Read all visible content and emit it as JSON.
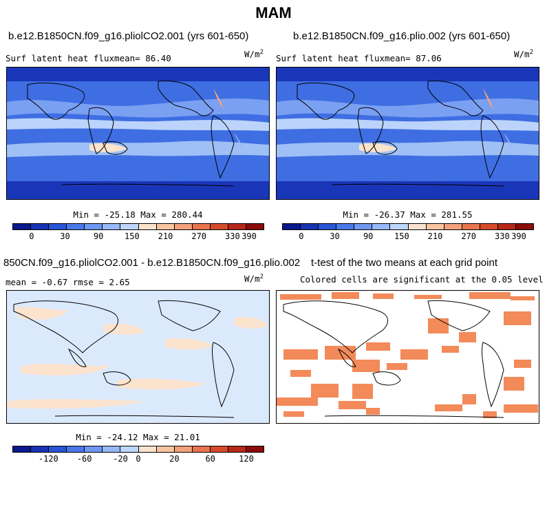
{
  "title": "MAM",
  "panels": {
    "p1": {
      "title": "b.e12.B1850CN.f09_g16.pliolCO2.001 (yrs 601-650)",
      "left_text": "Surf latent heat fluxmean=  86.40",
      "unit_base": "W/m",
      "unit_exp": "2",
      "minmax": "Min = -25.18 Max = 280.44"
    },
    "p2": {
      "title": "b.e12.B1850CN.f09_g16.plio.002 (yrs 601-650)",
      "left_text": "Surf latent heat fluxmean=  87.06",
      "unit_base": "W/m",
      "unit_exp": "2",
      "minmax": "Min = -26.37 Max = 281.55"
    },
    "p3": {
      "title": "850CN.f09_g16.pliolCO2.001 - b.e12.B1850CN.f09_g16.plio.002",
      "left_text": "mean =  -0.67    rmse =   2.65",
      "unit_base": "W/m",
      "unit_exp": "2",
      "minmax": "Min = -24.12 Max = 21.01"
    },
    "p4": {
      "title": "t-test of the two means at each grid point",
      "subtitle": "Colored cells are significant at the 0.05 level"
    }
  },
  "colorbars": {
    "abs": {
      "colors": [
        "#0a1a8c",
        "#1a33b3",
        "#2a55d6",
        "#4a78ea",
        "#6f98f2",
        "#97b8f6",
        "#bdd6fb",
        "#fbe3ce",
        "#f8c4a2",
        "#f3a07c",
        "#e8744e",
        "#d64a2a",
        "#b8281a",
        "#8c0c0c"
      ],
      "labels": [
        "0",
        "30",
        "90",
        "150",
        "210",
        "270",
        "330",
        "390"
      ]
    },
    "diff": {
      "colors": [
        "#0a1a8c",
        "#1a33b3",
        "#2a55d6",
        "#4a78ea",
        "#6f98f2",
        "#97b8f6",
        "#bdd6fb",
        "#fbe3ce",
        "#f8c4a2",
        "#f3a07c",
        "#e8744e",
        "#d64a2a",
        "#b8281a",
        "#8c0c0c"
      ],
      "labels": [
        "-120",
        "-60",
        "-20",
        "0",
        "20",
        "60",
        "120"
      ]
    }
  }
}
